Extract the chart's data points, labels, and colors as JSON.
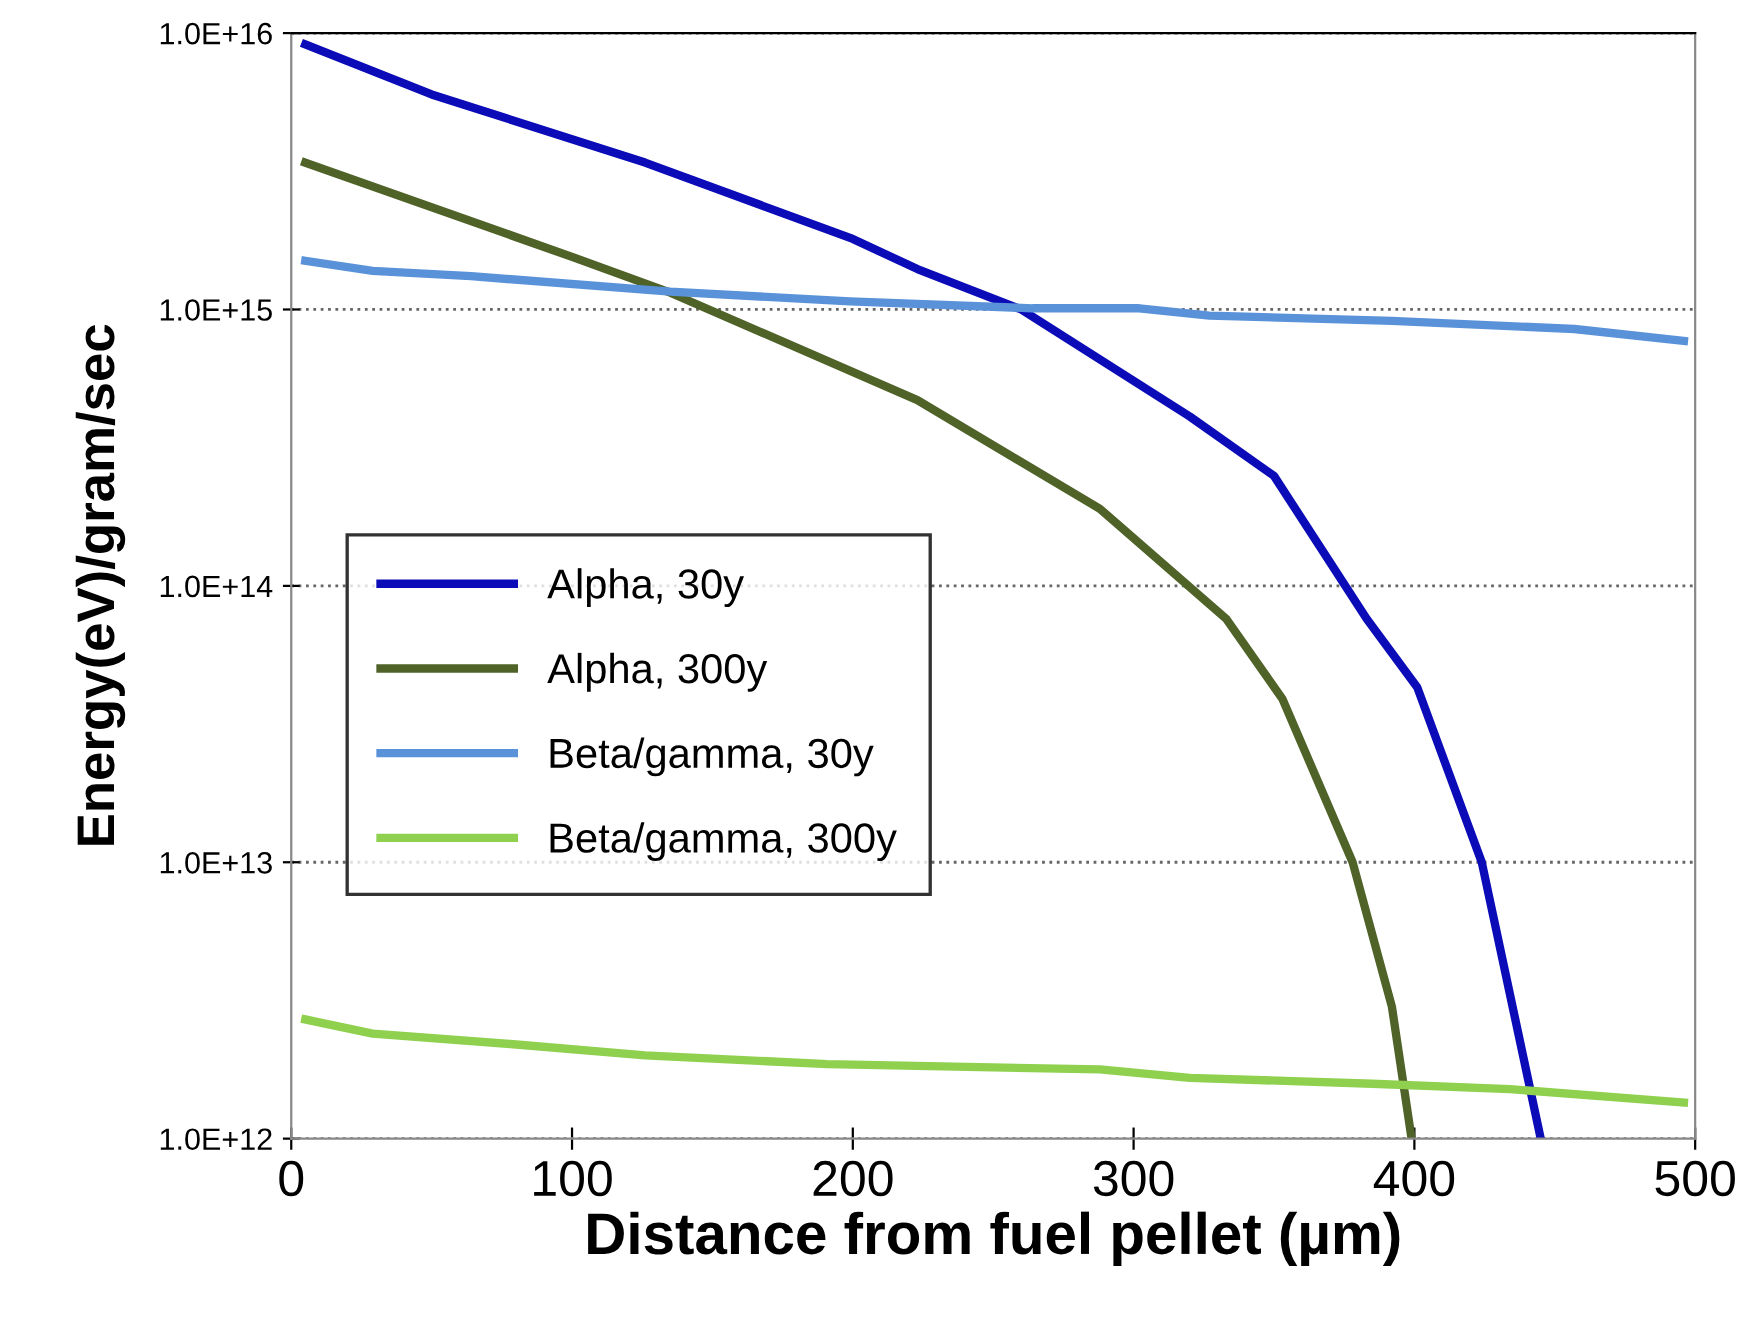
{
  "chart_data": {
    "type": "line",
    "xlabel": "Distance from fuel pellet (µm)",
    "ylabel": "Energy(eV)/gram/sec",
    "log": "y",
    "xlim": [
      0,
      500
    ],
    "xticks": [
      0,
      100,
      200,
      300,
      400,
      500
    ],
    "ylim": [
      1000000000000.0,
      1e+16
    ],
    "yticks": [
      {
        "value": 1000000000000.0,
        "label": "1.0E+12"
      },
      {
        "value": 10000000000000.0,
        "label": "1.0E+13"
      },
      {
        "value": 100000000000000.0,
        "label": "1.0E+14"
      },
      {
        "value": 1000000000000000.0,
        "label": "1.0E+15"
      },
      {
        "value": 1e+16,
        "label": "1.0E+16"
      }
    ],
    "grid": "y",
    "legend": "left",
    "marker": "none",
    "line_style": "solid",
    "series": [
      {
        "name": "Alpha, 30y",
        "color": "#0b0bb8",
        "x": [
          5,
          50,
          126,
          200,
          223,
          260,
          320,
          350,
          383,
          401,
          424,
          445
        ],
        "values": [
          9100000000000000.0,
          6000000000000000.0,
          3400000000000000.0,
          1800000000000000.0,
          1400000000000000.0,
          1000000000000000.0,
          410000000000000.0,
          250000000000000.0,
          76000000000000.0,
          43000000000000.0,
          10000000000000.0,
          1000000000000.0
        ]
      },
      {
        "name": "Alpha, 300y",
        "color": "#4f6228",
        "x": [
          5,
          100,
          135,
          223,
          288,
          333,
          353,
          378,
          392,
          399
        ],
        "values": [
          3400000000000000.0,
          1550000000000000.0,
          1150000000000000.0,
          470000000000000.0,
          190000000000000.0,
          76000000000000.0,
          39000000000000.0,
          10000000000000.0,
          3000000000000.0,
          1000000000000.0
        ]
      },
      {
        "name": "Beta/gamma, 30y",
        "color": "#5a92d9",
        "x": [
          5,
          29,
          64,
          135,
          199,
          264,
          302,
          327,
          392,
          457,
          496
        ],
        "values": [
          1500000000000000.0,
          1380000000000000.0,
          1320000000000000.0,
          1160000000000000.0,
          1070000000000000.0,
          1010000000000000.0,
          1010000000000000.0,
          950000000000000.0,
          910000000000000.0,
          850000000000000.0,
          770000000000000.0
        ]
      },
      {
        "name": "Beta/gamma, 300y",
        "color": "#8fd14f",
        "x": [
          5,
          29,
          78,
          126,
          191,
          288,
          320,
          385,
          434,
          496
        ],
        "values": [
          2700000000000.0,
          2400000000000.0,
          2200000000000.0,
          2000000000000.0,
          1860000000000.0,
          1780000000000.0,
          1660000000000.0,
          1580000000000.0,
          1510000000000.0,
          1350000000000.0
        ]
      }
    ]
  }
}
